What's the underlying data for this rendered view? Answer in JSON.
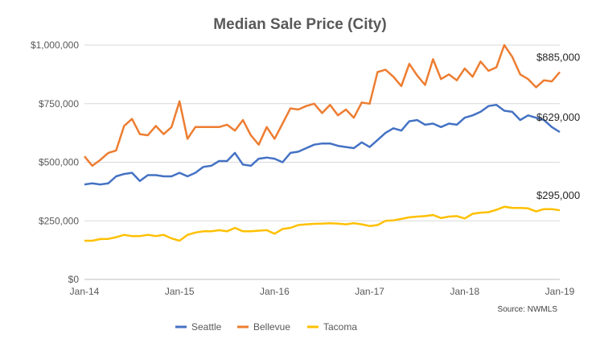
{
  "chart_data": {
    "type": "line",
    "title": "Median Sale Price (City)",
    "xlabel": "",
    "ylabel": "",
    "ylim": [
      0,
      1000000
    ],
    "yticks": [
      "$0",
      "$250,000",
      "$500,000",
      "$750,000",
      "$1,000,000"
    ],
    "ytick_values": [
      0,
      250000,
      500000,
      750000,
      1000000
    ],
    "xticks": [
      "Jan-14",
      "Jan-15",
      "Jan-16",
      "Jan-17",
      "Jan-18",
      "Jan-19"
    ],
    "x_range": [
      "Jan-14",
      "Jan-19"
    ],
    "x_frequency": "monthly",
    "grid": true,
    "legend_position": "bottom",
    "source": "Source: NWMLS",
    "series": [
      {
        "name": "Seattle",
        "color": "#4472C4",
        "end_label": "$629,000",
        "values": [
          405000,
          410000,
          405000,
          410000,
          440000,
          450000,
          455000,
          420000,
          445000,
          445000,
          440000,
          440000,
          455000,
          440000,
          455000,
          480000,
          485000,
          505000,
          505000,
          540000,
          490000,
          485000,
          515000,
          520000,
          515000,
          500000,
          540000,
          545000,
          560000,
          575000,
          580000,
          580000,
          570000,
          565000,
          560000,
          585000,
          565000,
          595000,
          625000,
          645000,
          635000,
          675000,
          680000,
          660000,
          665000,
          650000,
          665000,
          660000,
          690000,
          700000,
          715000,
          740000,
          745000,
          720000,
          715000,
          680000,
          700000,
          690000,
          680000,
          650000,
          629000
        ]
      },
      {
        "name": "Bellevue",
        "color": "#ED7D31",
        "end_label": "$885,000",
        "values": [
          525000,
          485000,
          510000,
          540000,
          550000,
          655000,
          685000,
          620000,
          615000,
          655000,
          620000,
          650000,
          760000,
          600000,
          650000,
          650000,
          650000,
          650000,
          660000,
          635000,
          680000,
          615000,
          575000,
          650000,
          600000,
          665000,
          730000,
          725000,
          740000,
          750000,
          710000,
          745000,
          700000,
          725000,
          690000,
          755000,
          750000,
          885000,
          895000,
          865000,
          825000,
          920000,
          870000,
          830000,
          940000,
          855000,
          875000,
          850000,
          900000,
          865000,
          930000,
          890000,
          905000,
          1000000,
          950000,
          875000,
          855000,
          820000,
          850000,
          845000,
          885000
        ]
      },
      {
        "name": "Tacoma",
        "color": "#FFC000",
        "end_label": "$295,000",
        "values": [
          165000,
          165000,
          172000,
          173000,
          180000,
          190000,
          185000,
          185000,
          190000,
          185000,
          190000,
          175000,
          165000,
          190000,
          200000,
          205000,
          205000,
          210000,
          205000,
          220000,
          205000,
          205000,
          208000,
          210000,
          195000,
          215000,
          220000,
          232000,
          235000,
          237000,
          238000,
          240000,
          238000,
          235000,
          240000,
          235000,
          228000,
          232000,
          250000,
          252000,
          258000,
          265000,
          268000,
          270000,
          275000,
          262000,
          268000,
          270000,
          260000,
          280000,
          285000,
          287000,
          297000,
          310000,
          305000,
          305000,
          303000,
          290000,
          300000,
          300000,
          295000
        ]
      }
    ]
  }
}
